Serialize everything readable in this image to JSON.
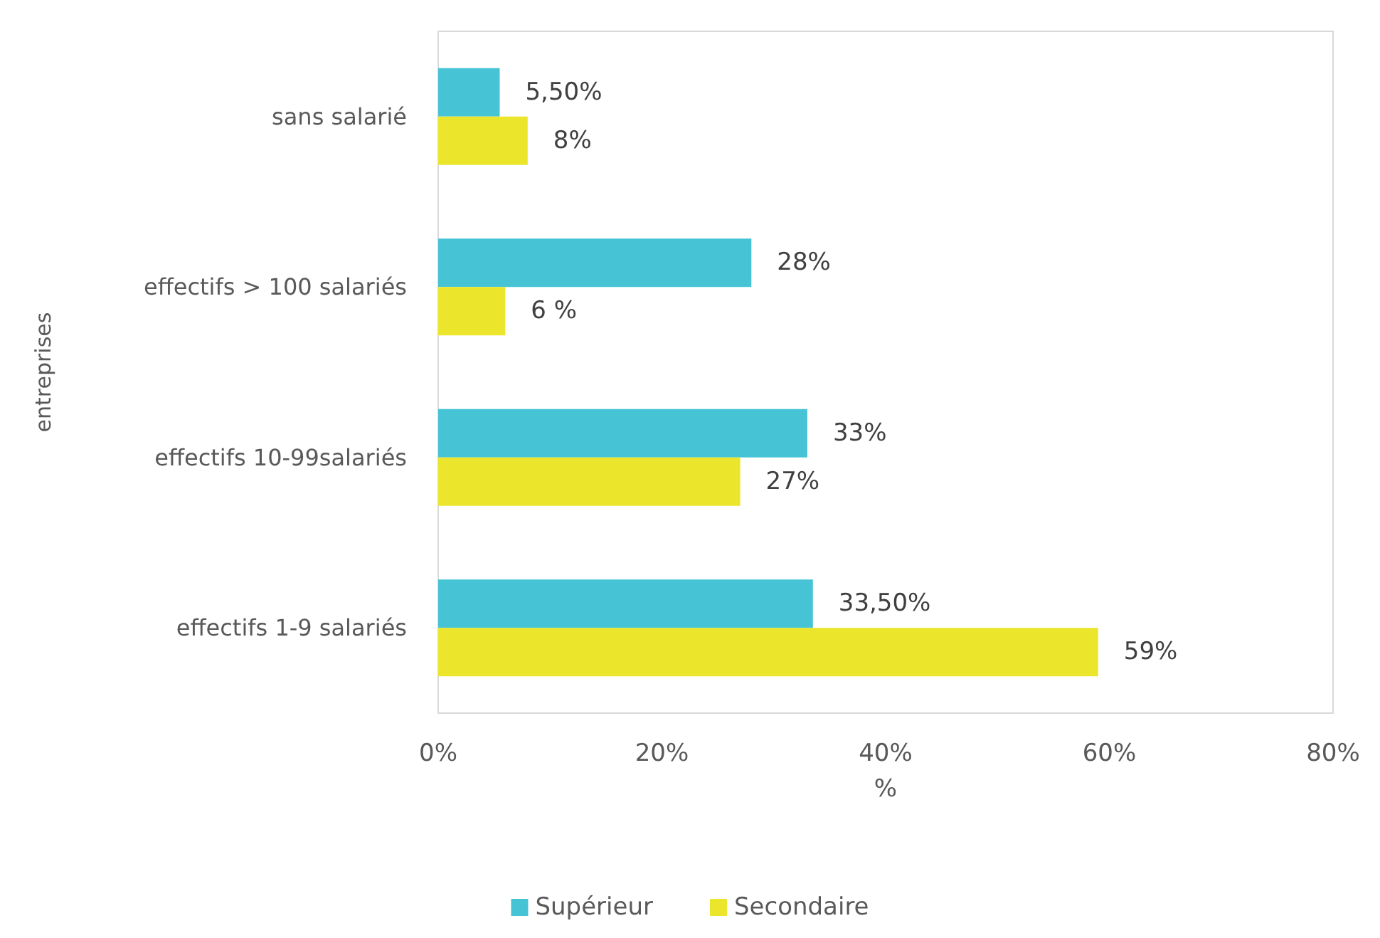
{
  "chart_data": {
    "type": "bar",
    "orientation": "horizontal",
    "xlabel": "%",
    "ylabel": "entreprises",
    "categories": [
      "sans salarié",
      "effectifs > 100 salariés",
      "effectifs 10-99salariés",
      "effectifs 1-9 salariés"
    ],
    "series": [
      {
        "name": "Supérieur",
        "color": "#46c4d6",
        "values": [
          5.5,
          28,
          33,
          33.5
        ],
        "value_labels": [
          "5,50%",
          "28%",
          "33%",
          "33,50%"
        ]
      },
      {
        "name": "Secondaire",
        "color": "#ebe62c",
        "values": [
          8,
          6,
          27,
          59
        ],
        "value_labels": [
          "8%",
          "6 %",
          "27%",
          "59%"
        ]
      }
    ],
    "xlim": [
      0,
      80
    ],
    "xticks": [
      {
        "value": 0,
        "label": "0%"
      },
      {
        "value": 20,
        "label": "20%"
      },
      {
        "value": 40,
        "label": "40%"
      },
      {
        "value": 60,
        "label": "60%"
      },
      {
        "value": 80,
        "label": "80%"
      }
    ],
    "grid": false,
    "legend": "bottom"
  }
}
